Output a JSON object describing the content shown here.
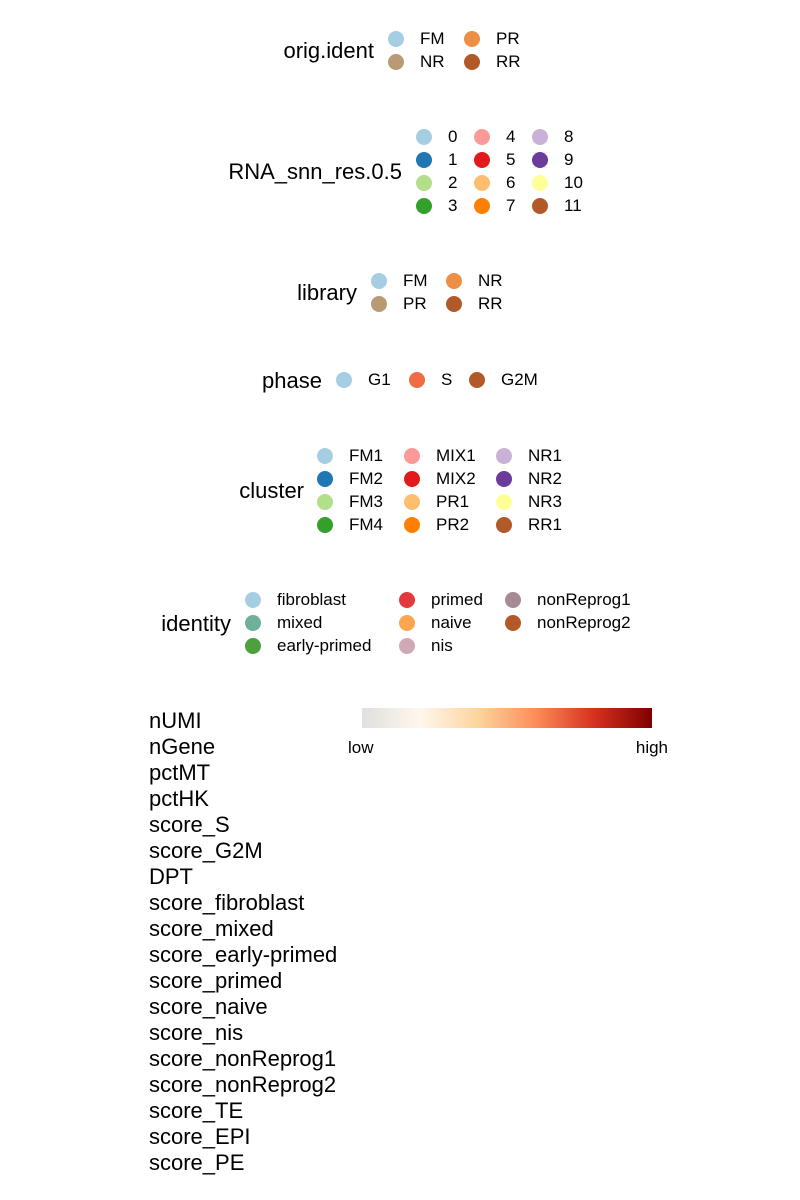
{
  "chart_data": [
    {
      "type": "legend",
      "title": "orig.ident",
      "ncol": 2,
      "entries": [
        {
          "label": "FM",
          "color": "#A6CEE3"
        },
        {
          "label": "NR",
          "color": "#B89B74"
        },
        {
          "label": "PR",
          "color": "#ED8F47"
        },
        {
          "label": "RR",
          "color": "#B15928"
        }
      ]
    },
    {
      "type": "legend",
      "title": "RNA_snn_res.0.5",
      "ncol": 3,
      "entries": [
        {
          "label": "0",
          "color": "#A6CEE3"
        },
        {
          "label": "1",
          "color": "#1F78B4"
        },
        {
          "label": "2",
          "color": "#B2DF8A"
        },
        {
          "label": "3",
          "color": "#33A02C"
        },
        {
          "label": "4",
          "color": "#FB9A99"
        },
        {
          "label": "5",
          "color": "#E31A1C"
        },
        {
          "label": "6",
          "color": "#FDBF6F"
        },
        {
          "label": "7",
          "color": "#FF7F00"
        },
        {
          "label": "8",
          "color": "#CAB2D6"
        },
        {
          "label": "9",
          "color": "#6A3D9A"
        },
        {
          "label": "10",
          "color": "#FFFF99"
        },
        {
          "label": "11",
          "color": "#B15928"
        }
      ]
    },
    {
      "type": "legend",
      "title": "library",
      "ncol": 2,
      "entries": [
        {
          "label": "FM",
          "color": "#A6CEE3"
        },
        {
          "label": "PR",
          "color": "#B89B74"
        },
        {
          "label": "NR",
          "color": "#ED8F47"
        },
        {
          "label": "RR",
          "color": "#B15928"
        }
      ]
    },
    {
      "type": "legend",
      "title": "phase",
      "ncol": 3,
      "entries": [
        {
          "label": "G1",
          "color": "#A6CEE3"
        },
        {
          "label": "S",
          "color": "#F06C45"
        },
        {
          "label": "G2M",
          "color": "#B15928"
        }
      ]
    },
    {
      "type": "legend",
      "title": "cluster",
      "ncol": 3,
      "entries": [
        {
          "label": "FM1",
          "color": "#A6CEE3"
        },
        {
          "label": "FM2",
          "color": "#1F78B4"
        },
        {
          "label": "FM3",
          "color": "#B2DF8A"
        },
        {
          "label": "FM4",
          "color": "#33A02C"
        },
        {
          "label": "MIX1",
          "color": "#FB9A99"
        },
        {
          "label": "MIX2",
          "color": "#E31A1C"
        },
        {
          "label": "PR1",
          "color": "#FDBF6F"
        },
        {
          "label": "PR2",
          "color": "#FF7F00"
        },
        {
          "label": "NR1",
          "color": "#CAB2D6"
        },
        {
          "label": "NR2",
          "color": "#6A3D9A"
        },
        {
          "label": "NR3",
          "color": "#FFFF99"
        },
        {
          "label": "RR1",
          "color": "#B15928"
        }
      ]
    },
    {
      "type": "legend",
      "title": "identity",
      "ncol": 3,
      "entries": [
        {
          "label": "fibroblast",
          "color": "#A6CEE3"
        },
        {
          "label": "mixed",
          "color": "#6FB09A"
        },
        {
          "label": "early-primed",
          "color": "#4E9F3D"
        },
        {
          "label": "primed",
          "color": "#E3393C"
        },
        {
          "label": "naive",
          "color": "#FDA54F"
        },
        {
          "label": "nis",
          "color": "#D0A9B7"
        },
        {
          "label": "nonReprog1",
          "color": "#A68A94"
        },
        {
          "label": "nonReprog2",
          "color": "#B15928"
        }
      ]
    },
    {
      "type": "colorbar",
      "low_label": "low",
      "high_label": "high",
      "colors": [
        "#E0E0E0",
        "#FFF7EC",
        "#FDD49E",
        "#FC8D59",
        "#D7301F",
        "#7F0000"
      ]
    }
  ],
  "variables": [
    "nUMI",
    "nGene",
    "pctMT",
    "pctHK",
    "score_S",
    "score_G2M",
    "DPT",
    "score_fibroblast",
    "score_mixed",
    "score_early-primed",
    "score_primed",
    "score_naive",
    "score_nis",
    "score_nonReprog1",
    "score_nonReprog2",
    "score_TE",
    "score_EPI",
    "score_PE"
  ]
}
